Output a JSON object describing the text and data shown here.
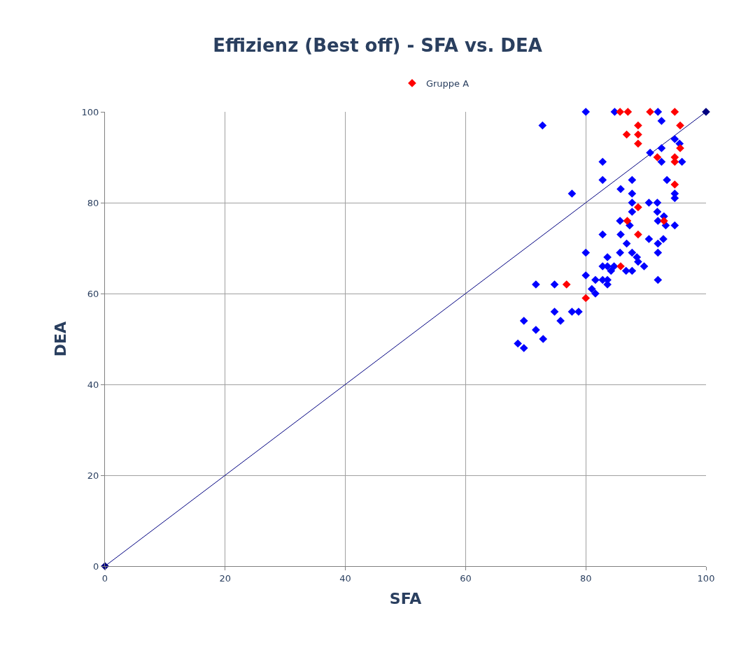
{
  "chart_data": {
    "type": "scatter",
    "title": "Effizienz (Best off) - SFA vs. DEA",
    "xlabel": "SFA",
    "ylabel": "DEA",
    "xlim": [
      0,
      100
    ],
    "ylim": [
      0,
      100
    ],
    "xticks": [
      0,
      20,
      40,
      60,
      80,
      100
    ],
    "yticks": [
      0,
      20,
      40,
      60,
      80,
      100
    ],
    "grid": true,
    "legend": "top",
    "marker": "diamond",
    "series": [
      {
        "type": "line",
        "color": "#000080",
        "x": [
          0,
          100
        ],
        "values": [
          0,
          100
        ],
        "line_style": "solid"
      },
      {
        "color": "#0000ff",
        "x": [
          80,
          84.8,
          92,
          72.8,
          92.6,
          90.7,
          92.6,
          94.8,
          95.6,
          92.6,
          96,
          82.8,
          77.7,
          82.8,
          87.7,
          85.8,
          87.7,
          87.7,
          90.5,
          91.9,
          94.8,
          94.8,
          93.5,
          85.7,
          87.7,
          87.3,
          91.9,
          92,
          93,
          93.3,
          94.8,
          82.8,
          85.8,
          86.8,
          90.5,
          92.9,
          92,
          80,
          85.7,
          87.7,
          92,
          83.6,
          88.5,
          88.7,
          82.8,
          83.6,
          84.2,
          84.7,
          86.7,
          87.7,
          89.7,
          80,
          82.8,
          83.6,
          83.6,
          81.6,
          92,
          81,
          81.6,
          71.7,
          74.8,
          74.8,
          77.7,
          78.8,
          69.7,
          75.8,
          71.7,
          72.9,
          68.7,
          69.7
        ],
        "values": [
          100,
          100,
          100,
          97,
          98,
          91,
          92,
          94,
          93,
          89,
          89,
          89,
          82,
          85,
          85,
          83,
          82,
          80,
          80,
          80,
          82,
          81,
          85,
          76,
          78,
          75,
          78,
          76,
          77,
          75,
          75,
          73,
          73,
          71,
          72,
          72,
          71,
          69,
          69,
          69,
          69,
          68,
          68,
          67,
          66,
          66,
          65,
          66,
          65,
          65,
          66,
          64,
          63,
          63,
          62,
          63,
          63,
          61,
          60,
          62,
          62,
          56,
          56,
          56,
          54,
          54,
          52,
          50,
          49,
          48
        ]
      },
      {
        "name": "Gruppe A",
        "color": "#ff0000",
        "x": [
          85.7,
          87,
          90.7,
          94.8,
          88.7,
          86.8,
          88.7,
          88.7,
          95.7,
          95.7,
          91.9,
          94.8,
          94.8,
          94.8,
          88.7,
          86.9,
          93,
          88.7,
          85.8,
          76.8,
          80
        ],
        "values": [
          100,
          100,
          100,
          100,
          97,
          95,
          95,
          93,
          97,
          92,
          90,
          90,
          89,
          84,
          79,
          76,
          76,
          73,
          66,
          62,
          59
        ]
      }
    ]
  }
}
